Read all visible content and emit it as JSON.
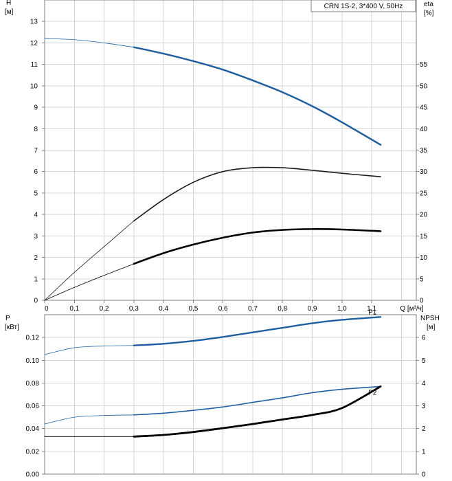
{
  "chart_data": [
    {
      "type": "line",
      "id": "upper",
      "title": "CRN 1S-2, 3*400 V, 50Hz",
      "xlabel": "Q [м³/ч]",
      "ylabel_left": "H",
      "ylabel_left_unit": "[м]",
      "ylabel_right": "eta",
      "ylabel_right_unit": "[%]",
      "xlim": [
        0,
        1.25
      ],
      "ylim_left": [
        0,
        14
      ],
      "ylim_right": [
        0,
        70
      ],
      "x_ticks": [
        "0",
        "0,1",
        "0,2",
        "0,3",
        "0,4",
        "0,5",
        "0,6",
        "0,7",
        "0,8",
        "0,9",
        "1,0",
        "1,1"
      ],
      "y_left_ticks": [
        "0",
        "1",
        "2",
        "3",
        "4",
        "5",
        "6",
        "7",
        "8",
        "9",
        "10",
        "11",
        "12",
        "13"
      ],
      "y_right_ticks": [
        "0",
        "5",
        "10",
        "15",
        "20",
        "25",
        "30",
        "35",
        "40",
        "45",
        "50",
        "55"
      ],
      "grid": true,
      "series": [
        {
          "axis": "left",
          "color": "#1f5fa0",
          "x": [
            0,
            0.1,
            0.2,
            0.3,
            0.4,
            0.5,
            0.6,
            0.7,
            0.8,
            0.9,
            1.0,
            1.13
          ],
          "y": [
            12.2,
            12.15,
            12.0,
            11.8,
            11.5,
            11.15,
            10.75,
            10.25,
            9.7,
            9.05,
            8.3,
            7.25
          ]
        },
        {
          "axis": "right",
          "color": "#1a1a1a",
          "x": [
            0,
            0.1,
            0.2,
            0.3,
            0.4,
            0.5,
            0.6,
            0.7,
            0.8,
            0.9,
            1.0,
            1.13
          ],
          "y": [
            0,
            6.5,
            12.5,
            18.5,
            23.5,
            27.5,
            30.0,
            30.9,
            30.9,
            30.3,
            29.6,
            28.8
          ]
        },
        {
          "axis": "right",
          "color": "#000000",
          "x": [
            0,
            0.1,
            0.2,
            0.3,
            0.4,
            0.5,
            0.6,
            0.7,
            0.8,
            0.9,
            1.0,
            1.13
          ],
          "y": [
            0,
            3.0,
            5.8,
            8.5,
            11.0,
            13.0,
            14.6,
            15.8,
            16.4,
            16.6,
            16.5,
            16.1
          ]
        }
      ]
    },
    {
      "type": "line",
      "id": "lower",
      "ylabel_left": "P",
      "ylabel_left_unit": "[кВт]",
      "ylabel_right": "NPSH",
      "ylabel_right_unit": "[м]",
      "xlim": [
        0,
        1.25
      ],
      "ylim_left": [
        0,
        0.14
      ],
      "ylim_right": [
        0,
        7
      ],
      "y_left_ticks": [
        "0.00",
        "0.02",
        "0.04",
        "0.06",
        "0.08",
        "0.10",
        "0.12"
      ],
      "y_right_ticks": [
        "0",
        "1",
        "2",
        "3",
        "4",
        "5",
        "6"
      ],
      "grid": true,
      "series": [
        {
          "name": "P1",
          "axis": "left",
          "color": "#1f5fa0",
          "x": [
            0,
            0.1,
            0.2,
            0.3,
            0.4,
            0.5,
            0.6,
            0.7,
            0.8,
            0.9,
            1.0,
            1.13
          ],
          "y": [
            0.105,
            0.111,
            0.1125,
            0.113,
            0.1145,
            0.117,
            0.1205,
            0.1245,
            0.1285,
            0.1325,
            0.1355,
            0.138
          ]
        },
        {
          "name": "P2",
          "axis": "left",
          "color": "#1f5fa0",
          "x": [
            0,
            0.1,
            0.2,
            0.3,
            0.4,
            0.5,
            0.6,
            0.7,
            0.8,
            0.9,
            1.0,
            1.13
          ],
          "y": [
            0.044,
            0.05,
            0.0515,
            0.052,
            0.0535,
            0.056,
            0.059,
            0.063,
            0.067,
            0.0715,
            0.0745,
            0.077
          ]
        },
        {
          "axis": "right",
          "color": "#000000",
          "x": [
            0,
            0.1,
            0.2,
            0.3,
            0.4,
            0.5,
            0.6,
            0.7,
            0.8,
            0.9,
            1.0,
            1.13
          ],
          "y": [
            1.65,
            1.65,
            1.65,
            1.65,
            1.72,
            1.85,
            2.02,
            2.2,
            2.4,
            2.6,
            2.9,
            3.85
          ]
        }
      ]
    }
  ]
}
